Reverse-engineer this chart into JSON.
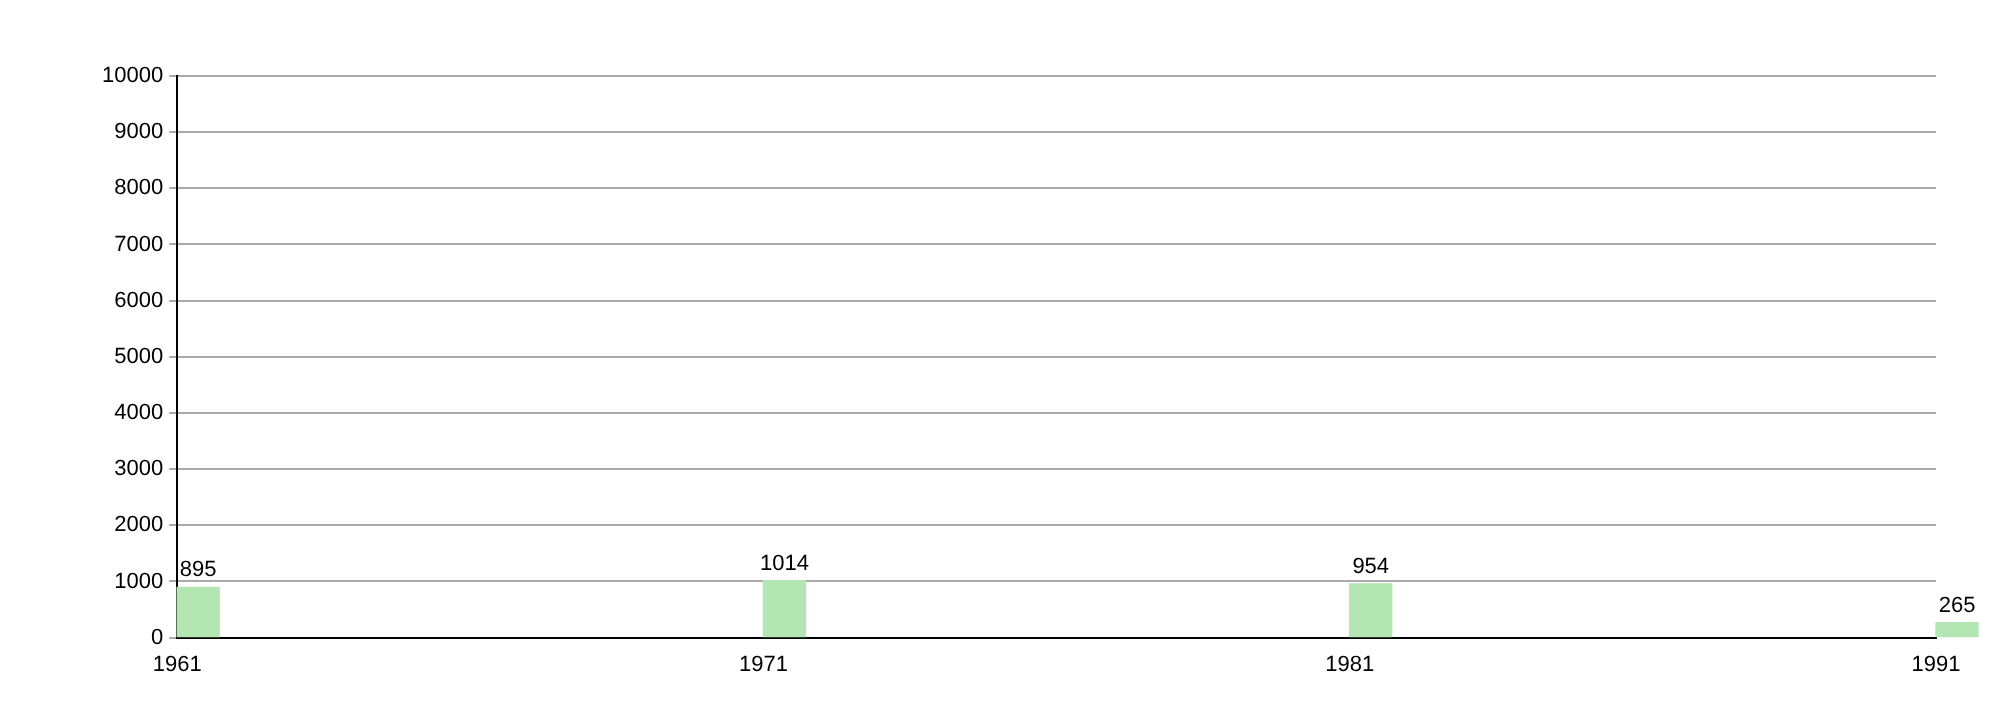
{
  "chart_data": {
    "type": "bar",
    "x": [
      1961,
      1971,
      1981,
      1991
    ],
    "values": [
      895,
      1014,
      954,
      265
    ],
    "color": "#b3e6b3",
    "xlim": [
      1961,
      1991
    ],
    "xticks": [
      1961,
      1971,
      1981,
      1991
    ],
    "ylim": [
      0,
      10000
    ],
    "yticks": [
      0,
      1000,
      2000,
      3000,
      4000,
      5000,
      6000,
      7000,
      8000,
      9000,
      10000
    ],
    "grid": "y",
    "data_labels": true
  }
}
